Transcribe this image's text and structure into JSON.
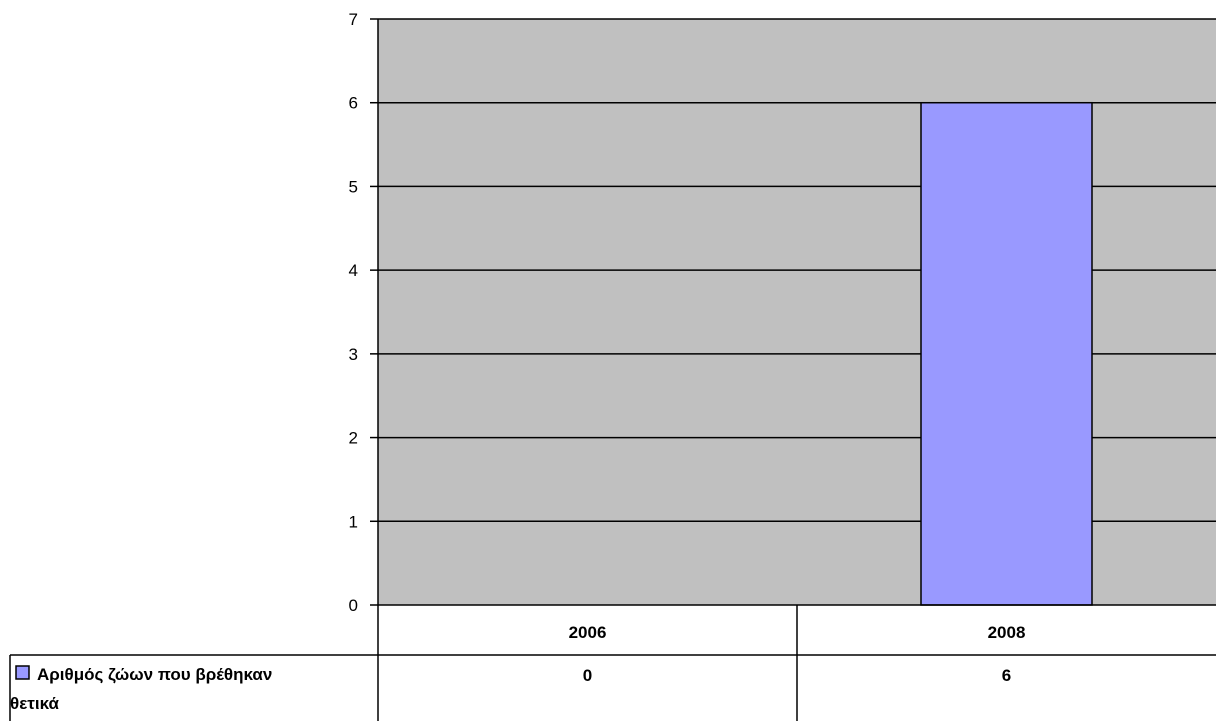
{
  "chart_data": {
    "type": "bar",
    "categories": [
      "2006",
      "2008"
    ],
    "series": [
      {
        "name": "Αριθμός ζώων που βρέθηκαν θετικά",
        "values": [
          0,
          6
        ],
        "display_values": [
          "0",
          "6"
        ],
        "color": "#9999FF"
      }
    ],
    "ylim": [
      0,
      7
    ],
    "yticks": [
      0,
      1,
      2,
      3,
      4,
      5,
      6,
      7
    ],
    "grid": true,
    "plot_background": "#C0C0C0",
    "legend": "data-table-left",
    "data_table": true
  }
}
